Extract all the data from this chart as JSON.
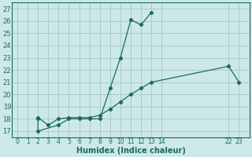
{
  "xlabel": "Humidex (Indice chaleur)",
  "bg_color": "#cce8e8",
  "grid_color": "#aacccc",
  "line_color": "#1a6b5a",
  "ylim": [
    16.5,
    27.5
  ],
  "yticks": [
    17,
    18,
    19,
    20,
    21,
    22,
    23,
    24,
    25,
    26,
    27
  ],
  "xtick_positions": [
    0,
    1,
    2,
    3,
    4,
    5,
    6,
    7,
    8,
    9,
    10,
    11,
    12,
    13,
    14,
    22,
    23
  ],
  "xtick_labels": [
    "0",
    "1",
    "2",
    "3",
    "4",
    "5",
    "6",
    "7",
    "8",
    "9",
    "10",
    "11",
    "12",
    "13",
    "14",
    "22",
    "23"
  ],
  "series1": {
    "x": [
      2,
      2,
      4,
      5,
      6,
      7,
      8,
      9,
      10,
      11,
      12,
      13
    ],
    "y": [
      18,
      17,
      17.5,
      18,
      18,
      18,
      18,
      20.5,
      23,
      26.1,
      25.7,
      26.7
    ]
  },
  "series2": {
    "x": [
      2,
      3,
      4,
      5,
      6,
      7,
      8,
      9,
      10,
      11,
      12,
      13,
      22,
      23
    ],
    "y": [
      18.1,
      17.5,
      18,
      18.1,
      18.1,
      18.1,
      18.3,
      18.8,
      19.4,
      20.0,
      20.5,
      21.0,
      22.3,
      21.0
    ]
  }
}
